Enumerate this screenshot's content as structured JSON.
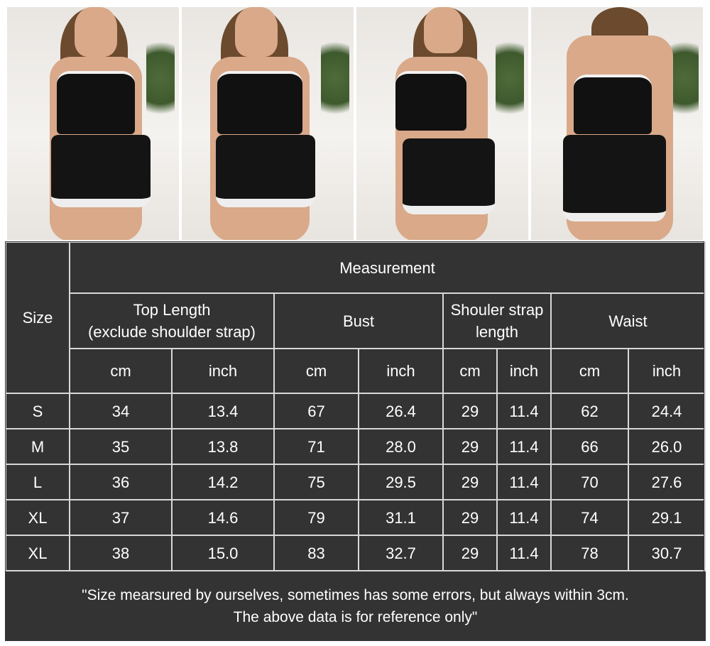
{
  "size_chart": {
    "size_header": "Size",
    "group_header": "Measurement",
    "columns": [
      {
        "label": "Top Length",
        "sublabel": "(exclude shoulder strap)"
      },
      {
        "label": "Bust",
        "sublabel": ""
      },
      {
        "label": "Shouler strap",
        "sublabel": "length"
      },
      {
        "label": "Waist",
        "sublabel": ""
      }
    ],
    "units": [
      "cm",
      "inch",
      "cm",
      "inch",
      "cm",
      "inch",
      "cm",
      "inch"
    ],
    "rows": [
      {
        "size": "S",
        "values": [
          "34",
          "13.4",
          "67",
          "26.4",
          "29",
          "11.4",
          "62",
          "24.4"
        ]
      },
      {
        "size": "M",
        "values": [
          "35",
          "13.8",
          "71",
          "28.0",
          "29",
          "11.4",
          "66",
          "26.0"
        ]
      },
      {
        "size": "L",
        "values": [
          "36",
          "14.2",
          "75",
          "29.5",
          "29",
          "11.4",
          "70",
          "27.6"
        ]
      },
      {
        "size": "XL",
        "values": [
          "37",
          "14.6",
          "79",
          "31.1",
          "29",
          "11.4",
          "74",
          "29.1"
        ]
      },
      {
        "size": "XL",
        "values": [
          "38",
          "15.0",
          "83",
          "32.7",
          "29",
          "11.4",
          "78",
          "30.7"
        ]
      }
    ],
    "note_line1": "\"Size mearsured by ourselves, sometimes has some errors, but always within 3cm.",
    "note_line2": "The above data is for reference only\""
  },
  "colors": {
    "table_bg": "#333333",
    "grid": "#d8d8d8",
    "text": "#ffffff"
  }
}
